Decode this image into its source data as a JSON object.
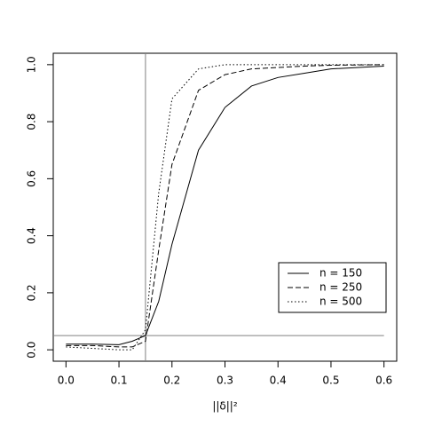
{
  "chart_data": {
    "type": "line",
    "xlabel": "||δ||²",
    "x": [
      0,
      0.05,
      0.1,
      0.125,
      0.15,
      0.175,
      0.2,
      0.25,
      0.3,
      0.35,
      0.4,
      0.45,
      0.5,
      0.6
    ],
    "series": [
      {
        "name": "n = 150",
        "color": "#000000",
        "linestyle": "solid",
        "values": [
          0.02,
          0.02,
          0.018,
          0.03,
          0.05,
          0.17,
          0.37,
          0.7,
          0.85,
          0.925,
          0.955,
          0.97,
          0.985,
          0.995
        ]
      },
      {
        "name": "n = 250",
        "color": "#000000",
        "linestyle": "dashed",
        "values": [
          0.015,
          0.015,
          0.01,
          0.01,
          0.03,
          0.35,
          0.65,
          0.91,
          0.965,
          0.985,
          0.99,
          0.995,
          0.998,
          1.0
        ]
      },
      {
        "name": "n = 500",
        "color": "#000000",
        "linestyle": "dotted",
        "values": [
          0.01,
          0.005,
          0.0,
          0.0,
          0.07,
          0.55,
          0.88,
          0.985,
          1.0,
          1.0,
          1.0,
          1.0,
          1.0,
          1.0
        ]
      }
    ],
    "hline": 0.05,
    "vline": 0.15,
    "refcolor": "#808080",
    "xlim": [
      -0.024,
      0.624
    ],
    "ylim": [
      -0.04,
      1.04
    ],
    "xticks": [
      {
        "value": 0,
        "label": "0.0"
      },
      0.1,
      0.2,
      0.3,
      0.4,
      0.5,
      0.6
    ],
    "yticks": [
      {
        "value": 0,
        "label": "0.0"
      },
      0.2,
      0.4,
      0.6,
      0.8,
      {
        "value": 1,
        "label": "1.0"
      }
    ],
    "legend": "bottom-right",
    "grid": false
  }
}
